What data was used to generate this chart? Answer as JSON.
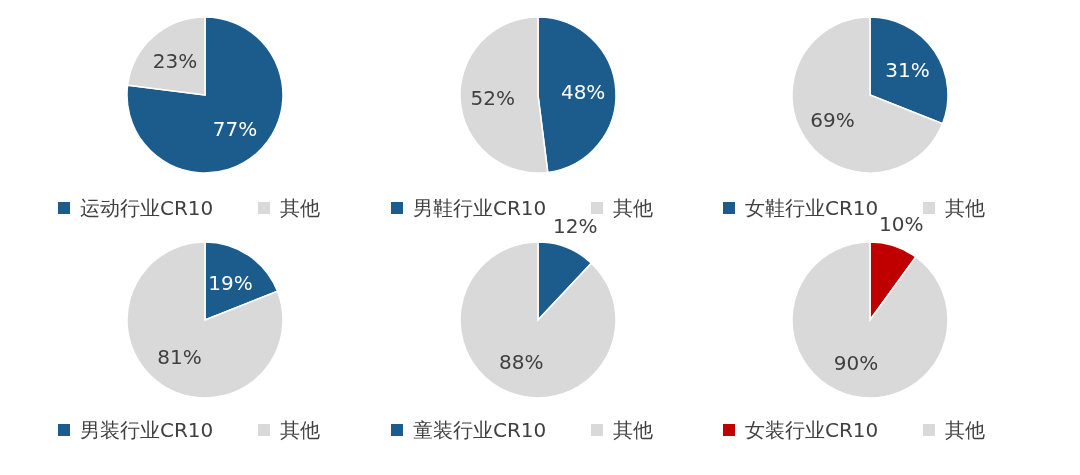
{
  "chart_data": [
    {
      "type": "pie",
      "categories": [
        "运动行业CR10",
        "其他"
      ],
      "values": [
        77,
        23
      ],
      "colors": [
        "#1b5c8c",
        "#d9d9d9"
      ],
      "value_labels": [
        "77%",
        "23%"
      ],
      "legend": "bottom"
    },
    {
      "type": "pie",
      "categories": [
        "男鞋行业CR10",
        "其他"
      ],
      "values": [
        48,
        52
      ],
      "colors": [
        "#1b5c8c",
        "#d9d9d9"
      ],
      "value_labels": [
        "48%",
        "52%"
      ],
      "legend": "bottom"
    },
    {
      "type": "pie",
      "categories": [
        "女鞋行业CR10",
        "其他"
      ],
      "values": [
        31,
        69
      ],
      "colors": [
        "#1b5c8c",
        "#d9d9d9"
      ],
      "value_labels": [
        "31%",
        "69%"
      ],
      "legend": "bottom"
    },
    {
      "type": "pie",
      "categories": [
        "男装行业CR10",
        "其他"
      ],
      "values": [
        19,
        81
      ],
      "colors": [
        "#1b5c8c",
        "#d9d9d9"
      ],
      "value_labels": [
        "19%",
        "81%"
      ],
      "legend": "bottom"
    },
    {
      "type": "pie",
      "categories": [
        "童装行业CR10",
        "其他"
      ],
      "values": [
        12,
        88
      ],
      "colors": [
        "#1b5c8c",
        "#d9d9d9"
      ],
      "value_labels": [
        "12%",
        "88%"
      ],
      "legend": "bottom"
    },
    {
      "type": "pie",
      "categories": [
        "女装行业CR10",
        "其他"
      ],
      "values": [
        10,
        90
      ],
      "colors": [
        "#c00000",
        "#d9d9d9"
      ],
      "value_labels": [
        "10%",
        "90%"
      ],
      "legend": "bottom"
    }
  ]
}
